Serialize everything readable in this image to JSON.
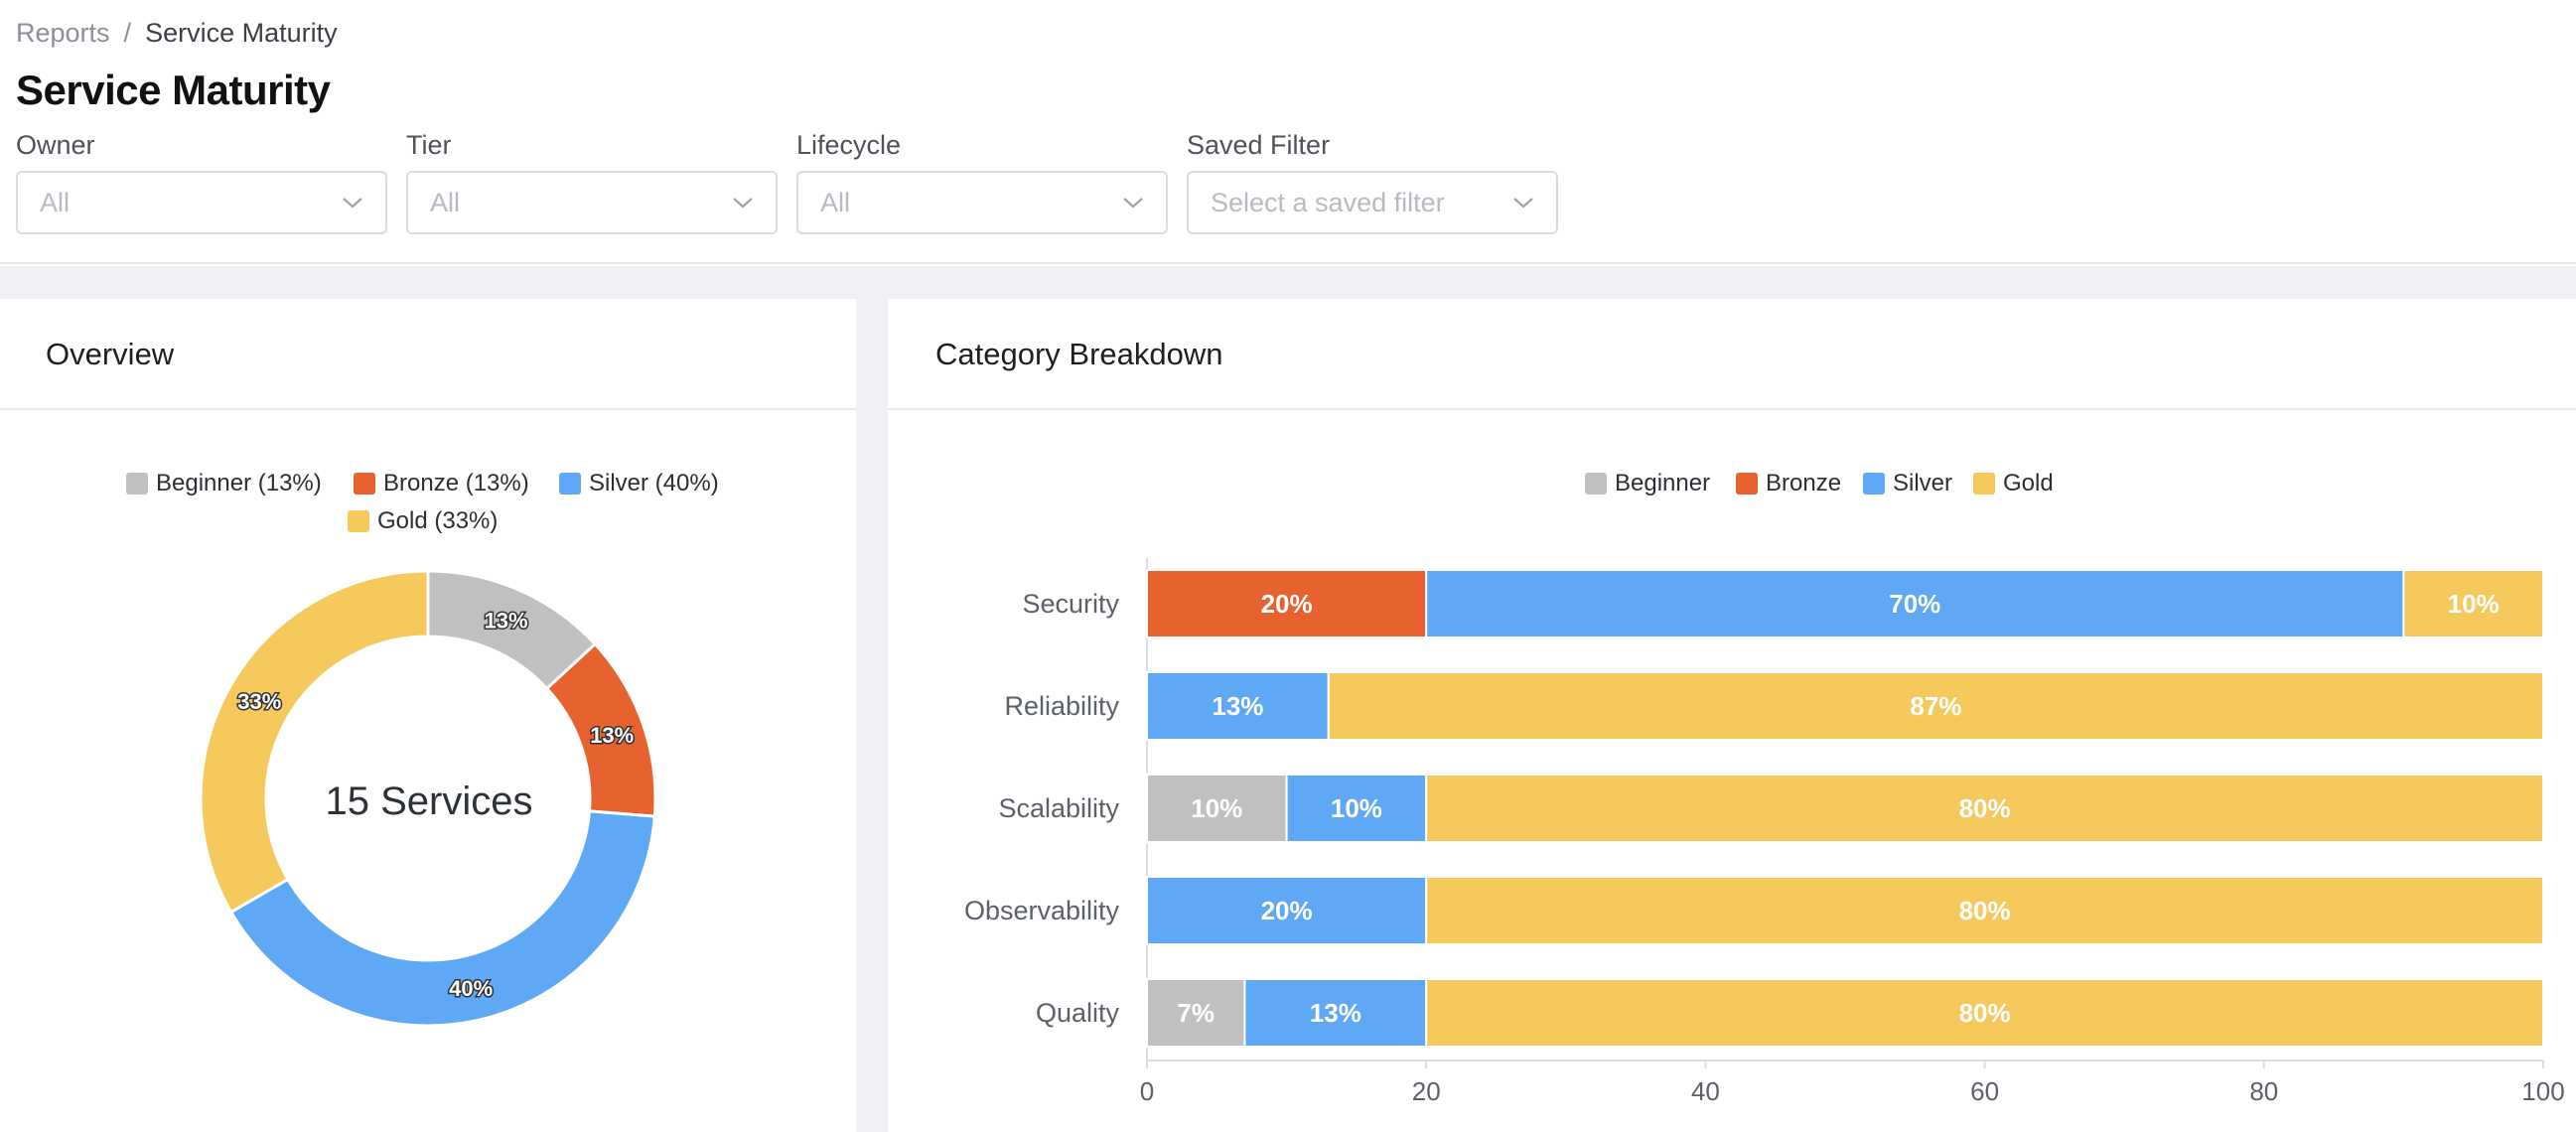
{
  "breadcrumb": {
    "parent": "Reports",
    "separator": "/",
    "current": "Service Maturity"
  },
  "page": {
    "title": "Service Maturity"
  },
  "filters": [
    {
      "label": "Owner",
      "value": "All"
    },
    {
      "label": "Tier",
      "value": "All"
    },
    {
      "label": "Lifecycle",
      "value": "All"
    },
    {
      "label": "Saved Filter",
      "placeholder": "Select a saved filter"
    }
  ],
  "colors": {
    "beginner": "#c0c0c0",
    "bronze": "#e8622f",
    "silver": "#5ea8f6",
    "gold": "#f5c95c"
  },
  "overview": {
    "title": "Overview",
    "center_label": "15 Services",
    "legend": [
      {
        "label": "Beginner (13%)",
        "color": "#c0c0c0"
      },
      {
        "label": "Bronze (13%)",
        "color": "#e8622f"
      },
      {
        "label": "Silver (40%)",
        "color": "#5ea8f6"
      },
      {
        "label": "Gold (33%)",
        "color": "#f5c95c"
      }
    ]
  },
  "breakdown": {
    "title": "Category Breakdown",
    "legend": [
      {
        "label": "Beginner",
        "color": "#c0c0c0"
      },
      {
        "label": "Bronze",
        "color": "#e8622f"
      },
      {
        "label": "Silver",
        "color": "#5ea8f6"
      },
      {
        "label": "Gold",
        "color": "#f5c95c"
      }
    ]
  },
  "chart_data": [
    {
      "type": "pie",
      "categories": [
        "Beginner",
        "Bronze",
        "Silver",
        "Gold"
      ],
      "values": [
        13,
        13,
        40,
        33
      ],
      "labels": [
        "13%",
        "13%",
        "40%",
        "33%"
      ],
      "colors": [
        "#c0c0c0",
        "#e8622f",
        "#5ea8f6",
        "#f5c95c"
      ]
    },
    {
      "type": "bar",
      "orientation": "horizontal",
      "stacked": true,
      "categories": [
        "Security",
        "Reliability",
        "Scalability",
        "Observability",
        "Quality"
      ],
      "series": [
        {
          "name": "Beginner",
          "color": "#c0c0c0",
          "values": [
            0,
            0,
            10,
            0,
            7
          ]
        },
        {
          "name": "Bronze",
          "color": "#e8622f",
          "values": [
            20,
            0,
            0,
            0,
            0
          ]
        },
        {
          "name": "Silver",
          "color": "#5ea8f6",
          "values": [
            70,
            13,
            10,
            20,
            13
          ]
        },
        {
          "name": "Gold",
          "color": "#f5c95c",
          "values": [
            10,
            87,
            80,
            80,
            80
          ]
        }
      ],
      "xlim": [
        0,
        100
      ],
      "xticks": [
        "0",
        "20",
        "40",
        "60",
        "80",
        "100"
      ],
      "legend_position": "top-center"
    }
  ]
}
